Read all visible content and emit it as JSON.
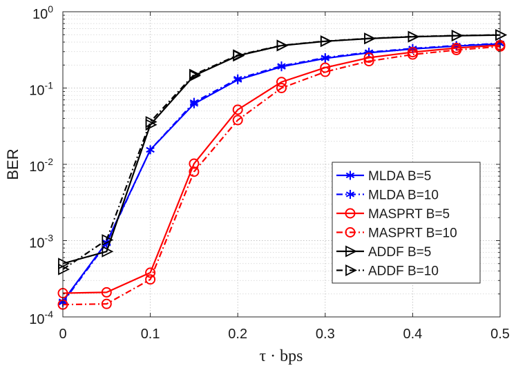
{
  "chart_data": {
    "type": "line",
    "title": "",
    "xlabel": "τ · bps",
    "ylabel": "BER",
    "y_scale": "log",
    "xlim": [
      0,
      0.5
    ],
    "ylim_exp": [
      -4,
      0
    ],
    "grid": true,
    "legend_position": "bottom-right",
    "x_ticks": [
      {
        "value": 0,
        "label": "0"
      },
      {
        "value": 0.1,
        "label": "0.1"
      },
      {
        "value": 0.2,
        "label": "0.2"
      },
      {
        "value": 0.3,
        "label": "0.3"
      },
      {
        "value": 0.4,
        "label": "0.4"
      },
      {
        "value": 0.5,
        "label": "0.5"
      }
    ],
    "y_ticks": [
      {
        "exp": -4,
        "base": "10",
        "sup": "-4"
      },
      {
        "exp": -3,
        "base": "10",
        "sup": "-3"
      },
      {
        "exp": -2,
        "base": "10",
        "sup": "-2"
      },
      {
        "exp": -1,
        "base": "10",
        "sup": "-1"
      },
      {
        "exp": 0,
        "base": "10",
        "sup": "0"
      }
    ],
    "x": [
      0,
      0.05,
      0.1,
      0.15,
      0.2,
      0.25,
      0.3,
      0.35,
      0.4,
      0.45,
      0.5
    ],
    "series": [
      {
        "name": "MLDA B=5",
        "color": "#0000ff",
        "dash": "solid",
        "marker": "asterisk",
        "values": [
          0.00016,
          0.00095,
          0.0155,
          0.062,
          0.128,
          0.19,
          0.245,
          0.29,
          0.325,
          0.355,
          0.38
        ]
      },
      {
        "name": "MLDA B=10",
        "color": "#0000ff",
        "dash": "dashdot",
        "marker": "asterisk",
        "values": [
          0.000155,
          0.00092,
          0.0155,
          0.065,
          0.132,
          0.195,
          0.25,
          0.295,
          0.33,
          0.36,
          0.385
        ]
      },
      {
        "name": "MASPRT B=5",
        "color": "#ff0000",
        "dash": "solid",
        "marker": "circle",
        "values": [
          0.000205,
          0.00021,
          0.00038,
          0.0102,
          0.052,
          0.12,
          0.185,
          0.25,
          0.295,
          0.335,
          0.365
        ]
      },
      {
        "name": "MASPRT B=10",
        "color": "#ff0000",
        "dash": "dashdot",
        "marker": "circle",
        "values": [
          0.000145,
          0.000148,
          0.00031,
          0.008,
          0.038,
          0.1,
          0.163,
          0.225,
          0.275,
          0.315,
          0.35
        ]
      },
      {
        "name": "ADDF B=5",
        "color": "#000000",
        "dash": "solid",
        "marker": "triangle-right",
        "values": [
          0.0005,
          0.00072,
          0.033,
          0.145,
          0.265,
          0.36,
          0.41,
          0.445,
          0.47,
          0.485,
          0.495
        ]
      },
      {
        "name": "ADDF B=10",
        "color": "#000000",
        "dash": "dashdot",
        "marker": "triangle-right",
        "values": [
          0.00042,
          0.00102,
          0.036,
          0.15,
          0.27,
          0.362,
          0.412,
          0.447,
          0.472,
          0.487,
          0.497
        ]
      }
    ]
  }
}
